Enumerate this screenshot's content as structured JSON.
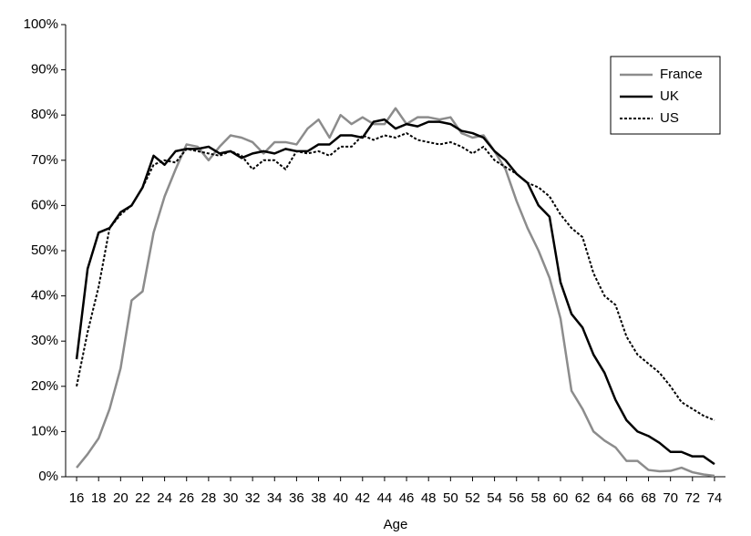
{
  "chart_data": {
    "type": "line",
    "x_label": "Age",
    "x": [
      16,
      17,
      18,
      19,
      20,
      21,
      22,
      23,
      24,
      25,
      26,
      27,
      28,
      29,
      30,
      31,
      32,
      33,
      34,
      35,
      36,
      37,
      38,
      39,
      40,
      41,
      42,
      43,
      44,
      45,
      46,
      47,
      48,
      49,
      50,
      51,
      52,
      53,
      54,
      55,
      56,
      57,
      58,
      59,
      60,
      61,
      62,
      63,
      64,
      65,
      66,
      67,
      68,
      69,
      70,
      71,
      72,
      73,
      74
    ],
    "xlim": [
      15,
      75
    ],
    "xticks": [
      16,
      18,
      20,
      22,
      24,
      26,
      28,
      30,
      32,
      34,
      36,
      38,
      40,
      42,
      44,
      46,
      48,
      50,
      52,
      54,
      56,
      58,
      60,
      62,
      64,
      66,
      68,
      70,
      72,
      74
    ],
    "ylim": [
      0,
      100
    ],
    "yticks": [
      {
        "value": 0,
        "label": "0%"
      },
      {
        "value": 10,
        "label": "10%"
      },
      {
        "value": 20,
        "label": "20%"
      },
      {
        "value": 30,
        "label": "30%"
      },
      {
        "value": 40,
        "label": "40%"
      },
      {
        "value": 50,
        "label": "50%"
      },
      {
        "value": 60,
        "label": "60%"
      },
      {
        "value": 70,
        "label": "70%"
      },
      {
        "value": 80,
        "label": "80%"
      },
      {
        "value": 90,
        "label": "90%"
      },
      {
        "value": 100,
        "label": "100%"
      }
    ],
    "legend_position": "top-right",
    "series": [
      {
        "name": "France",
        "color": "#8c8c8c",
        "dash": "solid",
        "values": [
          2,
          5,
          8.5,
          15,
          24,
          39,
          41,
          54,
          62,
          68,
          73.5,
          73,
          70,
          73,
          75.5,
          75,
          74,
          71.5,
          74,
          74,
          73.5,
          77,
          79,
          75,
          80,
          78,
          79.5,
          78,
          78,
          81.5,
          78,
          79.5,
          79.5,
          79,
          79.5,
          76,
          75,
          75.5,
          72,
          68,
          61,
          55,
          50,
          44,
          35,
          19,
          15,
          10,
          8,
          6.5,
          3.5,
          3.5,
          1.5,
          1.2,
          1.3,
          2,
          1,
          0.5,
          0.2
        ]
      },
      {
        "name": "UK",
        "color": "#000000",
        "dash": "solid",
        "values": [
          26,
          46,
          54,
          55,
          58.5,
          60,
          64,
          71,
          69,
          72,
          72.5,
          72.5,
          73,
          71.5,
          72,
          70.5,
          71.5,
          72,
          71.5,
          72.5,
          72,
          72,
          73.5,
          73.5,
          75.5,
          75.5,
          75,
          78.5,
          79,
          77,
          78,
          77.5,
          78.5,
          78.5,
          78,
          76.5,
          76,
          75,
          72,
          70,
          67,
          65,
          60,
          57.5,
          43,
          36,
          33,
          27,
          23,
          17,
          12.5,
          10,
          9,
          7.5,
          5.5,
          5.5,
          4.5,
          4.5,
          2.8
        ]
      },
      {
        "name": "US",
        "color": "#000000",
        "dash": "dotted",
        "values": [
          20,
          32,
          42,
          55,
          58,
          60,
          64,
          69,
          70,
          69.5,
          72.5,
          72,
          71.5,
          71,
          72,
          71,
          68,
          70,
          70,
          68,
          72,
          71.5,
          72,
          71,
          73,
          73,
          75.5,
          74.5,
          75.5,
          75,
          76,
          74.5,
          74,
          73.5,
          74,
          73,
          71.5,
          73,
          70,
          68.5,
          67,
          65,
          64,
          62,
          58,
          55,
          53,
          45,
          40,
          38,
          31,
          27,
          25,
          23,
          20,
          16.5,
          15,
          13.5,
          12.5
        ]
      }
    ]
  }
}
